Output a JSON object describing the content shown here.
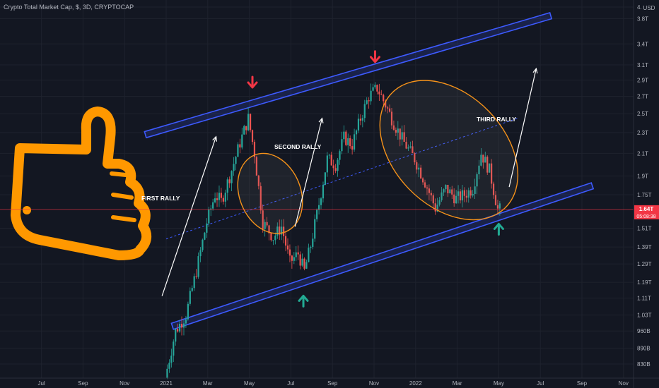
{
  "header": {
    "title": "Crypto Total Market Cap, $, 3D, CRYPTOCAP"
  },
  "currency_label": "USD",
  "price_tag": {
    "value": "1.64T",
    "countdown": "05:08:38"
  },
  "annotations": {
    "first_rally": "FIRST RALLY",
    "second_rally": "SECOND RALLY",
    "third_rally": "THIRD RALLY"
  },
  "colors": {
    "background": "#131722",
    "channel": "#3d5afe",
    "up_candle": "#26a69a",
    "down_candle": "#ef5350",
    "ellipse": "#f7931a",
    "thumb": "#ff9800",
    "price_tag": "#f23645"
  },
  "chart_data": {
    "type": "candlestick",
    "title": "Crypto Total Market Cap, $, 3D, CRYPTOCAP",
    "y_scale": "log",
    "ylim": [
      0.78,
      4.0
    ],
    "y_unit": "USD trillions",
    "x_ticks": [
      {
        "label": "Jul",
        "t": -6
      },
      {
        "label": "Sep",
        "t": -4
      },
      {
        "label": "Nov",
        "t": -2
      },
      {
        "label": "2021",
        "t": 0
      },
      {
        "label": "Mar",
        "t": 2
      },
      {
        "label": "May",
        "t": 4
      },
      {
        "label": "Jul",
        "t": 6
      },
      {
        "label": "Sep",
        "t": 8
      },
      {
        "label": "Nov",
        "t": 10
      },
      {
        "label": "2022",
        "t": 12
      },
      {
        "label": "Mar",
        "t": 14
      },
      {
        "label": "May",
        "t": 16
      },
      {
        "label": "Jul",
        "t": 18
      },
      {
        "label": "Sep",
        "t": 20
      },
      {
        "label": "Nov",
        "t": 22
      }
    ],
    "y_ticks": [
      {
        "label": "4.",
        "v": 4.0
      },
      {
        "label": "3.8T",
        "v": 3.8
      },
      {
        "label": "3.4T",
        "v": 3.4
      },
      {
        "label": "3.1T",
        "v": 3.1
      },
      {
        "label": "2.9T",
        "v": 2.9
      },
      {
        "label": "2.7T",
        "v": 2.7
      },
      {
        "label": "2.5T",
        "v": 2.5
      },
      {
        "label": "2.3T",
        "v": 2.3
      },
      {
        "label": "2.1T",
        "v": 2.1
      },
      {
        "label": "1.9T",
        "v": 1.9
      },
      {
        "label": "1.75T",
        "v": 1.75
      },
      {
        "label": "1.51T",
        "v": 1.51
      },
      {
        "label": "1.39T",
        "v": 1.39
      },
      {
        "label": "1.29T",
        "v": 1.29
      },
      {
        "label": "1.19T",
        "v": 1.19
      },
      {
        "label": "1.11T",
        "v": 1.11
      },
      {
        "label": "1.03T",
        "v": 1.03
      },
      {
        "label": "960B",
        "v": 0.96
      },
      {
        "label": "890B",
        "v": 0.89
      },
      {
        "label": "830B",
        "v": 0.83
      }
    ],
    "current_price": 1.64,
    "price_anchors": [
      [
        0.0,
        0.78
      ],
      [
        0.5,
        0.96
      ],
      [
        1.0,
        1.03
      ],
      [
        1.5,
        1.25
      ],
      [
        2.0,
        1.55
      ],
      [
        2.4,
        1.75
      ],
      [
        2.7,
        1.7
      ],
      [
        3.2,
        1.95
      ],
      [
        3.6,
        2.2
      ],
      [
        4.0,
        2.45
      ],
      [
        4.3,
        2.1
      ],
      [
        4.7,
        1.55
      ],
      [
        5.2,
        1.45
      ],
      [
        5.6,
        1.52
      ],
      [
        6.0,
        1.3
      ],
      [
        6.4,
        1.35
      ],
      [
        6.7,
        1.25
      ],
      [
        7.0,
        1.4
      ],
      [
        7.4,
        1.68
      ],
      [
        7.8,
        2.05
      ],
      [
        8.2,
        2.0
      ],
      [
        8.6,
        2.25
      ],
      [
        9.0,
        2.18
      ],
      [
        9.4,
        2.45
      ],
      [
        9.8,
        2.7
      ],
      [
        10.2,
        2.8
      ],
      [
        10.6,
        2.6
      ],
      [
        11.0,
        2.4
      ],
      [
        11.5,
        2.2
      ],
      [
        12.0,
        2.05
      ],
      [
        12.5,
        1.85
      ],
      [
        13.0,
        1.65
      ],
      [
        13.5,
        1.8
      ],
      [
        14.0,
        1.72
      ],
      [
        14.4,
        1.75
      ],
      [
        14.8,
        1.8
      ],
      [
        15.2,
        2.1
      ],
      [
        15.6,
        1.95
      ],
      [
        16.0,
        1.64
      ]
    ],
    "channel": {
      "upper": [
        [
          -1.0,
          2.28
        ],
        [
          18.5,
          3.85
        ]
      ],
      "midline": [
        [
          0.0,
          1.44
        ],
        [
          16.9,
          2.45
        ]
      ],
      "lower": [
        [
          0.3,
          0.98
        ],
        [
          20.5,
          1.82
        ]
      ]
    },
    "ellipses": [
      {
        "center": [
          5.0,
          1.76
        ],
        "rx_months": 1.9,
        "ry_ratio": 1.55,
        "angle": 68
      },
      {
        "center": [
          13.6,
          2.13
        ],
        "rx_months": 3.7,
        "ry_ratio": 1.45,
        "angle": 46
      }
    ],
    "rally_arrows": [
      {
        "from": [
          -0.2,
          1.12
        ],
        "to": [
          2.4,
          2.26
        ]
      },
      {
        "from": [
          6.2,
          1.52
        ],
        "to": [
          7.5,
          2.45
        ]
      },
      {
        "from": [
          16.5,
          1.81
        ],
        "to": [
          17.8,
          3.05
        ]
      }
    ],
    "down_arrows_at": [
      [
        4.15,
        2.86
      ],
      [
        10.05,
        3.2
      ]
    ],
    "up_arrows_at": [
      [
        6.6,
        1.1
      ],
      [
        16.0,
        1.51
      ]
    ]
  }
}
